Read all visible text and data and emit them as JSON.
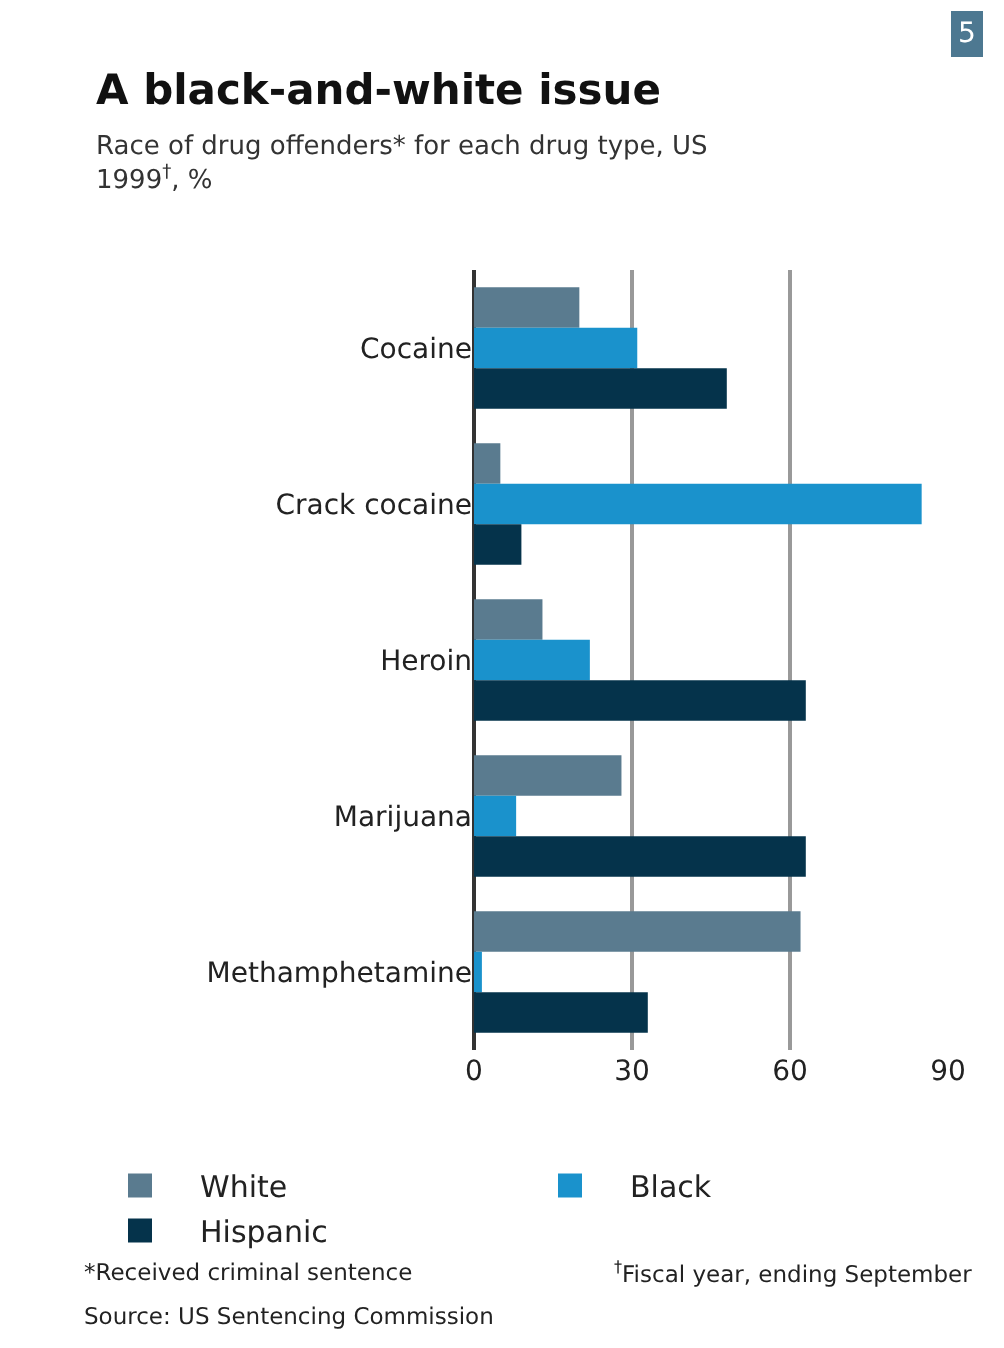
{
  "chart_data": {
    "type": "bar",
    "orientation": "horizontal",
    "title": "A black-and-white issue",
    "subtitle": "Race of drug offenders* for each drug type, US\n1999$^{†}$, %",
    "categories": [
      "Cocaine",
      "Crack cocaine",
      "Heroin",
      "Marijuana",
      "Methamphetamine"
    ],
    "series": [
      {
        "name": "White",
        "color": "#5a7b8f",
        "values": [
          20,
          5,
          13,
          28,
          62
        ]
      },
      {
        "name": "Black",
        "color": "#1a92cc",
        "values": [
          31,
          85,
          22,
          8,
          1.5
        ]
      },
      {
        "name": "Hispanic",
        "color": "#05334b",
        "values": [
          48,
          9,
          63,
          63,
          33
        ]
      }
    ],
    "xlim": [
      0,
      90
    ],
    "xticks": [
      0,
      30,
      60,
      90
    ],
    "grid": "x",
    "legend": "bottom",
    "annotations": [
      "5",
      "*Received criminal sentence",
      "$^{†}$Fiscal year, ending September",
      "Source: US Sentencing Commission"
    ]
  }
}
